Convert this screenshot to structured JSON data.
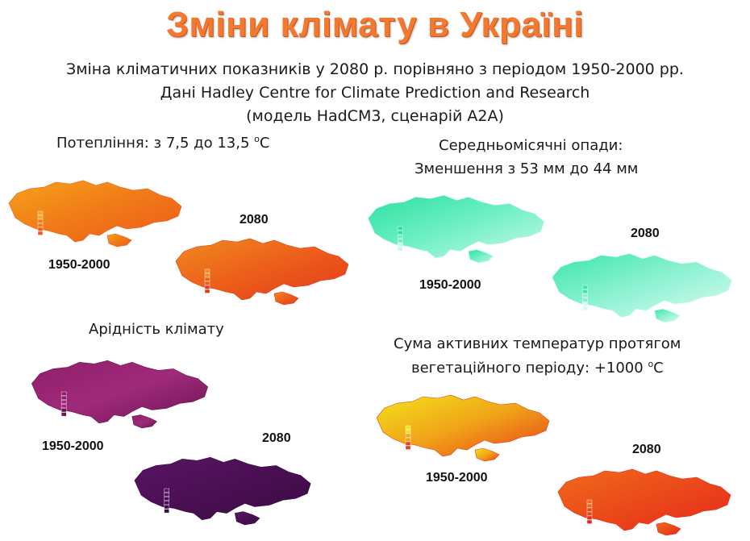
{
  "slide": {
    "title": "Зміни клімату в Україні",
    "subtitle_line1": "Зміна кліматичних показників у 2080 р. порівняно з періодом 1950-2000 рр.",
    "subtitle_line2": "Дані Hadley Centre for Climate Prediction and Research",
    "subtitle_line3": "(модель HadCM3, сценарій A2A)"
  },
  "panels": {
    "warming": {
      "label_prefix": "Потепління: з 7,5 до 13,5 ",
      "label_unit_sup": "o",
      "label_unit": "C",
      "year_past": "1950-2000",
      "year_future": "2080",
      "colors_past": [
        "#f6a21a",
        "#f07a18",
        "#ee5a1a"
      ],
      "colors_future": [
        "#f08a1e",
        "#ec5e1a",
        "#e33a1c"
      ]
    },
    "precipitation": {
      "label_line1": "Середньомісячні опади:",
      "label_line2": "Зменшення з 53 мм до 44 мм",
      "year_past": "1950-2000",
      "year_future": "2080",
      "colors_past": [
        "#2ee0a0",
        "#6ef0c4",
        "#c8f8ea"
      ],
      "colors_future": [
        "#3ae6a8",
        "#8ef2d2",
        "#d8fbf1"
      ]
    },
    "aridity": {
      "label": "Арідність клімату",
      "year_past": "1950-2000",
      "year_future": "2080",
      "colors_past": [
        "#8e1f6a",
        "#a02a7a",
        "#6a1454"
      ],
      "colors_future": [
        "#5a1466",
        "#4a0f52",
        "#3a0b44"
      ]
    },
    "active_temps": {
      "label_line1": "Сума активних температур протягом",
      "label_line2_prefix": "вегетаційного періоду: +1000 ",
      "label_unit_sup": "o",
      "label_unit": "C",
      "year_past": "1950-2000",
      "year_future": "2080",
      "colors_past": [
        "#f2e21a",
        "#f0a418",
        "#e8401a"
      ],
      "colors_future": [
        "#f06a1a",
        "#ea4a1a",
        "#e8281c"
      ]
    }
  }
}
